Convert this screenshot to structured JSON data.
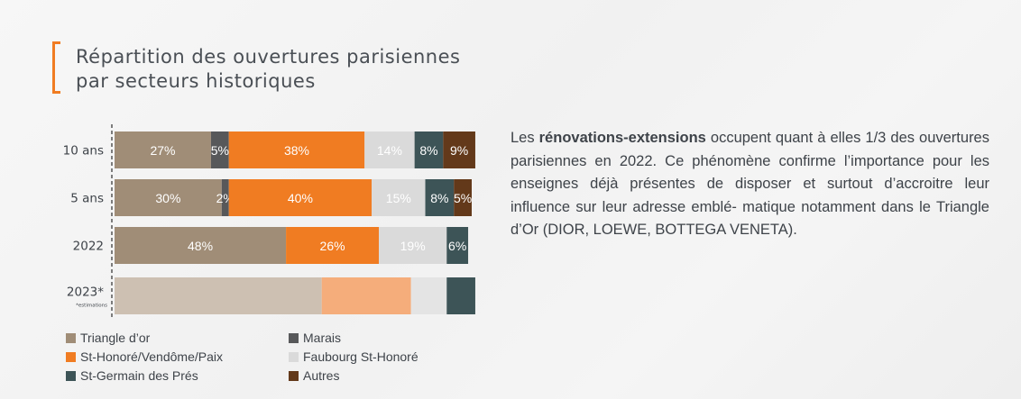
{
  "title": {
    "line1": "Répartition des ouvertures parisiennes",
    "line2": "par secteurs historiques"
  },
  "paragraph": {
    "part1": "Les ",
    "bold": "rénovations-extensions",
    "part2": " occupent quant à elles 1/3 des ouvertures parisiennes en 2022. Ce phénomène confirme l’importance pour les enseignes déjà présentes de disposer et surtout d’accroitre leur influence sur leur adresse emblé- matique notamment dans le Triangle d’Or (DIOR, LOEWE, BOTTEGA VENETA)."
  },
  "chart_data": {
    "type": "bar",
    "orientation": "horizontal",
    "stacked": true,
    "categories": [
      "10 ans",
      "5 ans",
      "2022",
      "2023*"
    ],
    "category_note": "*estimations",
    "series": [
      {
        "name": "Triangle d’or",
        "color": "#a08d77",
        "values": [
          27,
          30,
          48,
          58
        ],
        "labels": [
          "27%",
          "30%",
          "48%",
          ""
        ]
      },
      {
        "name": "Marais",
        "color": "#57585a",
        "values": [
          5,
          2,
          0,
          0
        ],
        "labels": [
          "5%",
          "2%",
          "",
          ""
        ]
      },
      {
        "name": "St-Honoré/Vendôme/Paix",
        "color": "#f07c22",
        "values": [
          38,
          40,
          26,
          25
        ],
        "labels": [
          "38%",
          "40%",
          "26%",
          ""
        ]
      },
      {
        "name": "Faubourg St-Honoré",
        "color": "#dadada",
        "values": [
          14,
          15,
          19,
          10
        ],
        "labels": [
          "14%",
          "15%",
          "19%",
          ""
        ]
      },
      {
        "name": "St-Germain des Prés",
        "color": "#3d5457",
        "values": [
          8,
          8,
          6,
          8
        ],
        "labels": [
          "8%",
          "8%",
          "6%",
          ""
        ]
      },
      {
        "name": "Autres",
        "color": "#63391a",
        "values": [
          9,
          5,
          0,
          0
        ],
        "labels": [
          "9%",
          "5%",
          "",
          ""
        ]
      }
    ],
    "estimate_colors": [
      "#cdc0b2",
      "",
      "#f5ad7b",
      "#e4e4e4",
      "#3d5457",
      ""
    ],
    "xlim": [
      0,
      100
    ],
    "legend_position": "bottom"
  }
}
